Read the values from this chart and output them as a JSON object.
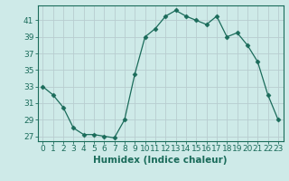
{
  "x": [
    0,
    1,
    2,
    3,
    4,
    5,
    6,
    7,
    8,
    9,
    10,
    11,
    12,
    13,
    14,
    15,
    16,
    17,
    18,
    19,
    20,
    21,
    22,
    23
  ],
  "y": [
    33,
    32,
    30.5,
    28,
    27.2,
    27.2,
    27,
    26.8,
    29,
    34.5,
    39,
    40,
    41.5,
    42.2,
    41.5,
    41,
    40.5,
    41.5,
    39,
    39.5,
    38,
    36,
    32,
    29
  ],
  "line_color": "#1a6b5a",
  "marker": "D",
  "marker_size": 2.5,
  "bg_color": "#ceeae8",
  "grid_color": "#b8cdd0",
  "outer_bg": "#ceeae8",
  "xlabel": "Humidex (Indice chaleur)",
  "ylabel_ticks": [
    27,
    29,
    31,
    33,
    35,
    37,
    39,
    41
  ],
  "xlim": [
    -0.5,
    23.5
  ],
  "ylim": [
    26.4,
    42.8
  ],
  "xticks": [
    0,
    1,
    2,
    3,
    4,
    5,
    6,
    7,
    8,
    9,
    10,
    11,
    12,
    13,
    14,
    15,
    16,
    17,
    18,
    19,
    20,
    21,
    22,
    23
  ],
  "xtick_labels": [
    "0",
    "1",
    "2",
    "3",
    "4",
    "5",
    "6",
    "7",
    "8",
    "9",
    "10",
    "11",
    "12",
    "13",
    "14",
    "15",
    "16",
    "17",
    "18",
    "19",
    "20",
    "21",
    "22",
    "23"
  ],
  "tick_fontsize": 6.5,
  "label_fontsize": 7.5
}
